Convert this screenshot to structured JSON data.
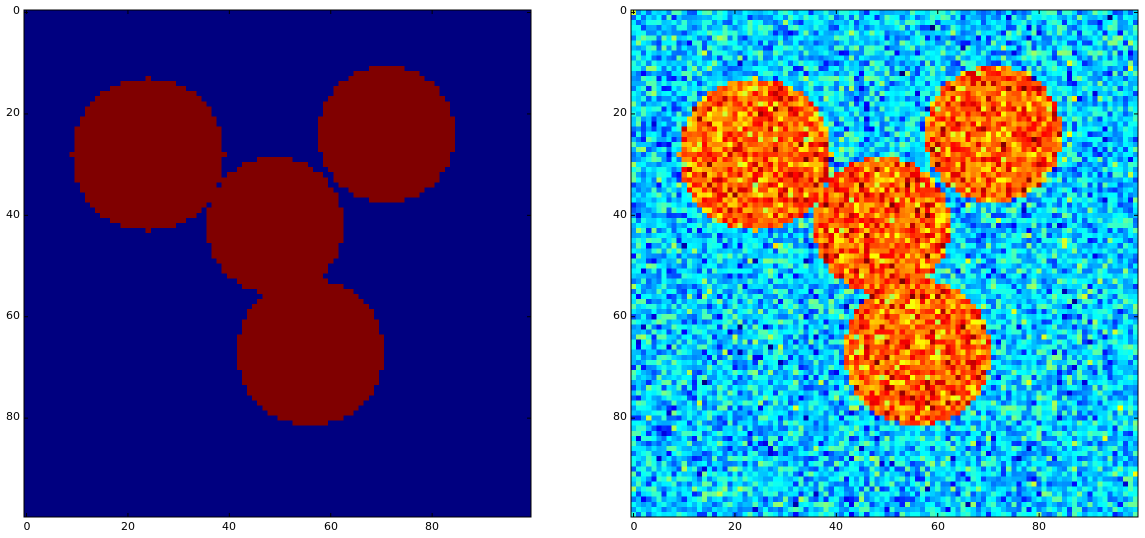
{
  "chart_data": [
    {
      "type": "heatmap",
      "image": "binary-mask",
      "colormap": "jet",
      "grid": false,
      "title": "",
      "xlabel": "",
      "ylabel": "",
      "shape": [
        100,
        100
      ],
      "xlim": [
        -0.5,
        99.5
      ],
      "ylim": [
        99.5,
        -0.5
      ],
      "xticks": [
        0,
        20,
        40,
        60,
        80
      ],
      "yticks": [
        0,
        20,
        40,
        60,
        80
      ],
      "xtick_labels": [
        "0",
        "20",
        "40",
        "60",
        "80"
      ],
      "ytick_labels": [
        "0",
        "20",
        "40",
        "60",
        "80"
      ],
      "value_range": [
        0,
        1
      ],
      "background_value": 0,
      "circles": [
        {
          "cx": 24,
          "cy": 28,
          "r": 15,
          "value": 1
        },
        {
          "cx": 49,
          "cy": 42,
          "r": 13.5,
          "value": 1
        },
        {
          "cx": 71,
          "cy": 24,
          "r": 13.5,
          "value": 1
        },
        {
          "cx": 56,
          "cy": 67,
          "r": 14.5,
          "value": 1
        }
      ],
      "colors": {
        "background": "#00007f",
        "foreground": "#7f0000"
      }
    },
    {
      "type": "heatmap",
      "image": "noisy-image",
      "colormap": "jet",
      "grid": false,
      "title": "",
      "xlabel": "",
      "ylabel": "",
      "shape": [
        100,
        100
      ],
      "xlim": [
        -0.5,
        99.5
      ],
      "ylim": [
        99.5,
        -0.5
      ],
      "xticks": [
        0,
        20,
        40,
        60,
        80
      ],
      "yticks": [
        0,
        20,
        40,
        60,
        80
      ],
      "xtick_labels": [
        "0",
        "20",
        "40",
        "60",
        "80"
      ],
      "ytick_labels": [
        "0",
        "20",
        "40",
        "60",
        "80"
      ],
      "background_level": 0.33,
      "foreground_level": 0.78,
      "noise_sigma": 0.09,
      "circles": [
        {
          "cx": 24,
          "cy": 28,
          "r": 15
        },
        {
          "cx": 49,
          "cy": 42,
          "r": 13.5
        },
        {
          "cx": 71,
          "cy": 24,
          "r": 13.5
        },
        {
          "cx": 56,
          "cy": 67,
          "r": 14.5
        }
      ]
    }
  ]
}
